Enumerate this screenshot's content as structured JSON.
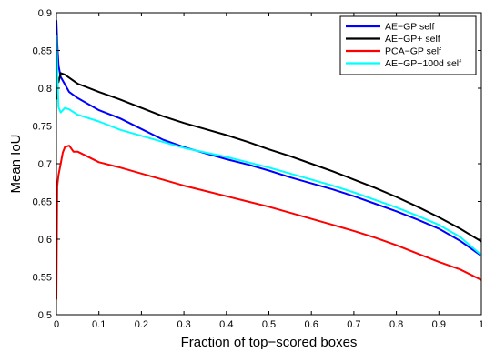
{
  "chart_data": {
    "type": "line",
    "title": "",
    "xlabel": "Fraction of top−scored boxes",
    "ylabel": "Mean IoU",
    "xlim": [
      0,
      1
    ],
    "ylim": [
      0.5,
      0.9
    ],
    "xticks": [
      0,
      0.1,
      0.2,
      0.3,
      0.4,
      0.5,
      0.6,
      0.7,
      0.8,
      0.9,
      1
    ],
    "xtick_labels": [
      "0",
      "0.1",
      "0.2",
      "0.3",
      "0.4",
      "0.5",
      "0.6",
      "0.7",
      "0.8",
      "0.9",
      "1"
    ],
    "yticks": [
      0.5,
      0.55,
      0.6,
      0.65,
      0.7,
      0.75,
      0.8,
      0.85,
      0.9
    ],
    "ytick_labels": [
      "0.5",
      "0.55",
      "0.6",
      "0.65",
      "0.7",
      "0.75",
      "0.8",
      "0.85",
      "0.9"
    ],
    "grid": false,
    "legend_position": "top-right",
    "series": [
      {
        "name": "AE−GP self",
        "color": "#0000ff",
        "x": [
          0,
          0.002,
          0.005,
          0.01,
          0.02,
          0.03,
          0.05,
          0.1,
          0.15,
          0.2,
          0.25,
          0.3,
          0.35,
          0.4,
          0.45,
          0.5,
          0.55,
          0.6,
          0.65,
          0.7,
          0.75,
          0.8,
          0.85,
          0.9,
          0.95,
          1.0
        ],
        "y": [
          0.89,
          0.86,
          0.83,
          0.815,
          0.805,
          0.795,
          0.787,
          0.771,
          0.76,
          0.746,
          0.732,
          0.722,
          0.714,
          0.706,
          0.699,
          0.691,
          0.682,
          0.674,
          0.666,
          0.657,
          0.647,
          0.637,
          0.626,
          0.614,
          0.598,
          0.578
        ]
      },
      {
        "name": "AE−GP+ self",
        "color": "#000000",
        "x": [
          0,
          0.002,
          0.005,
          0.01,
          0.02,
          0.03,
          0.05,
          0.1,
          0.15,
          0.2,
          0.25,
          0.3,
          0.35,
          0.4,
          0.45,
          0.5,
          0.55,
          0.6,
          0.65,
          0.7,
          0.75,
          0.8,
          0.85,
          0.9,
          0.95,
          1.0
        ],
        "y": [
          0.785,
          0.815,
          0.808,
          0.82,
          0.818,
          0.814,
          0.806,
          0.795,
          0.785,
          0.774,
          0.763,
          0.754,
          0.746,
          0.738,
          0.729,
          0.719,
          0.71,
          0.7,
          0.69,
          0.679,
          0.668,
          0.656,
          0.643,
          0.629,
          0.614,
          0.597
        ]
      },
      {
        "name": "PCA−GP self",
        "color": "#ff0000",
        "x": [
          0,
          0.002,
          0.005,
          0.01,
          0.015,
          0.02,
          0.03,
          0.04,
          0.05,
          0.1,
          0.15,
          0.2,
          0.25,
          0.3,
          0.35,
          0.4,
          0.45,
          0.5,
          0.55,
          0.6,
          0.65,
          0.7,
          0.75,
          0.8,
          0.85,
          0.9,
          0.95,
          1.0
        ],
        "y": [
          0.52,
          0.67,
          0.685,
          0.7,
          0.715,
          0.722,
          0.724,
          0.716,
          0.716,
          0.702,
          0.695,
          0.687,
          0.679,
          0.671,
          0.664,
          0.657,
          0.65,
          0.643,
          0.635,
          0.627,
          0.619,
          0.611,
          0.602,
          0.592,
          0.581,
          0.57,
          0.56,
          0.546
        ]
      },
      {
        "name": "AE−GP−100d self",
        "color": "#00ffff",
        "x": [
          0,
          0.002,
          0.005,
          0.01,
          0.02,
          0.03,
          0.05,
          0.1,
          0.15,
          0.2,
          0.25,
          0.3,
          0.35,
          0.4,
          0.45,
          0.5,
          0.55,
          0.6,
          0.65,
          0.7,
          0.75,
          0.8,
          0.85,
          0.9,
          0.95,
          1.0
        ],
        "y": [
          0.87,
          0.83,
          0.775,
          0.768,
          0.774,
          0.772,
          0.765,
          0.756,
          0.745,
          0.737,
          0.729,
          0.721,
          0.715,
          0.709,
          0.702,
          0.695,
          0.687,
          0.679,
          0.671,
          0.662,
          0.652,
          0.642,
          0.631,
          0.619,
          0.603,
          0.579
        ]
      }
    ]
  }
}
